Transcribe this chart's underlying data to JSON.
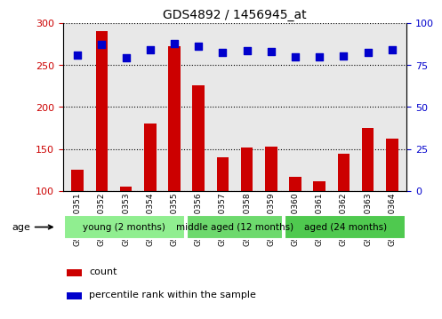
{
  "title": "GDS4892 / 1456945_at",
  "samples": [
    "GSM1230351",
    "GSM1230352",
    "GSM1230353",
    "GSM1230354",
    "GSM1230355",
    "GSM1230356",
    "GSM1230357",
    "GSM1230358",
    "GSM1230359",
    "GSM1230360",
    "GSM1230361",
    "GSM1230362",
    "GSM1230363",
    "GSM1230364"
  ],
  "counts": [
    125,
    290,
    105,
    180,
    272,
    226,
    140,
    152,
    153,
    117,
    111,
    144,
    175,
    162
  ],
  "percentiles_left_scale": [
    262,
    275,
    259,
    268,
    276,
    272,
    265,
    267,
    266,
    260,
    260,
    261,
    265,
    268
  ],
  "ylim_left": [
    100,
    300
  ],
  "ylim_right": [
    0,
    100
  ],
  "yticks_left": [
    100,
    150,
    200,
    250,
    300
  ],
  "yticks_right": [
    0,
    25,
    50,
    75,
    100
  ],
  "bar_color": "#cc0000",
  "dot_color": "#0000cc",
  "groups": [
    {
      "label": "young (2 months)",
      "start": 0,
      "end": 5,
      "color": "#90ee90"
    },
    {
      "label": "middle aged (12 months)",
      "start": 5,
      "end": 9,
      "color": "#6dd96d"
    },
    {
      "label": "aged (24 months)",
      "start": 9,
      "end": 14,
      "color": "#4fc94f"
    }
  ],
  "age_label": "age",
  "legend_count": "count",
  "legend_percentile": "percentile rank within the sample",
  "tick_label_color_left": "#cc0000",
  "tick_label_color_right": "#0000cc",
  "plot_bg": "#e8e8e8"
}
